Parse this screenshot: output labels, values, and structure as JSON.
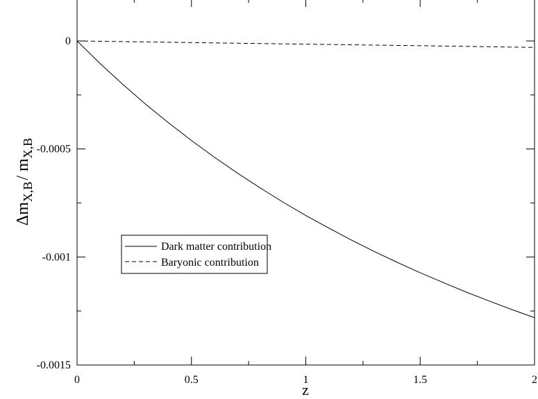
{
  "chart_data": {
    "type": "line",
    "title": "",
    "xlabel": "z",
    "ylabel": {
      "base": "Δm",
      "sub1": "X,B",
      "sep": "/ m",
      "sub2": "X,B"
    },
    "xlim": [
      0,
      2
    ],
    "ylim": [
      -0.0015,
      0.0001
    ],
    "x_ticks": [
      {
        "value": 0,
        "label": "0"
      },
      {
        "value": 0.5,
        "label": "0.5"
      },
      {
        "value": 1,
        "label": "1"
      },
      {
        "value": 1.5,
        "label": "1.5"
      },
      {
        "value": 2,
        "label": "2"
      }
    ],
    "y_ticks": [
      {
        "value": 0,
        "label": "0"
      },
      {
        "value": -0.0005,
        "label": "-0.0005"
      },
      {
        "value": -0.001,
        "label": "-0.001"
      },
      {
        "value": -0.0015,
        "label": "-0.0015"
      }
    ],
    "x_minor_step": 0.25,
    "y_minor_step": 0.00025,
    "grid": false,
    "legend_position": "center-left",
    "series": [
      {
        "name": "Dark matter contribution",
        "style": "solid",
        "color": "#000000",
        "x": [
          0,
          0.1,
          0.2,
          0.3,
          0.4,
          0.5,
          0.6,
          0.7,
          0.8,
          0.9,
          1.0,
          1.1,
          1.2,
          1.3,
          1.4,
          1.5,
          1.6,
          1.7,
          1.8,
          1.9,
          2.0
        ],
        "y": [
          0,
          -0.000104,
          -0.000201,
          -0.000293,
          -0.000379,
          -0.000461,
          -0.000538,
          -0.000611,
          -0.00068,
          -0.000746,
          -0.000808,
          -0.000866,
          -0.000922,
          -0.000975,
          -0.001025,
          -0.001073,
          -0.001118,
          -0.001162,
          -0.001203,
          -0.001243,
          -0.001281
        ]
      },
      {
        "name": "Baryonic contribution",
        "style": "dashed",
        "color": "#000000",
        "x": [
          0,
          0.5,
          1.0,
          1.5,
          2.0
        ],
        "y": [
          0,
          -7.5e-06,
          -1.5e-05,
          -2.2e-05,
          -3e-05
        ]
      }
    ]
  }
}
